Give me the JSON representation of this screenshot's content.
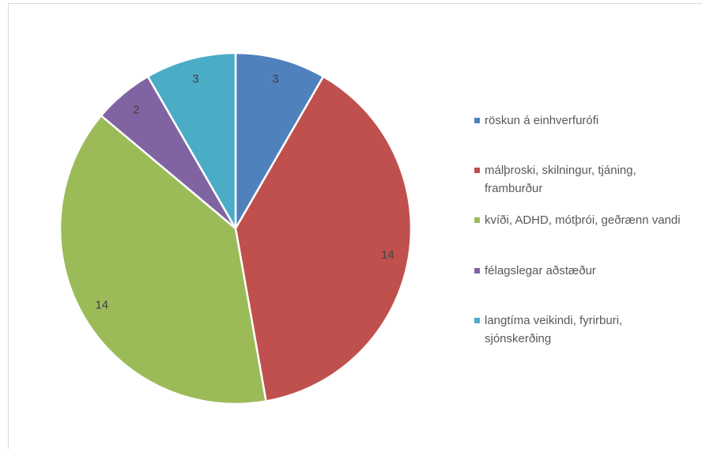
{
  "chart_data": {
    "type": "pie",
    "categories": [
      "röskun á einhverfurófi",
      "málþroski, skilningur, tjáning, framburður",
      "kvíði, ADHD, mótþrói, geðrænn vandi",
      "félagslegar aðstæður",
      "langtíma veikindi, fyrirburi, sjónskerðing"
    ],
    "values": [
      3,
      14,
      14,
      2,
      3
    ],
    "colors": [
      "#4f81bd",
      "#c0504d",
      "#9bbb59",
      "#8064a2",
      "#4bacc6"
    ],
    "legend": "right"
  }
}
